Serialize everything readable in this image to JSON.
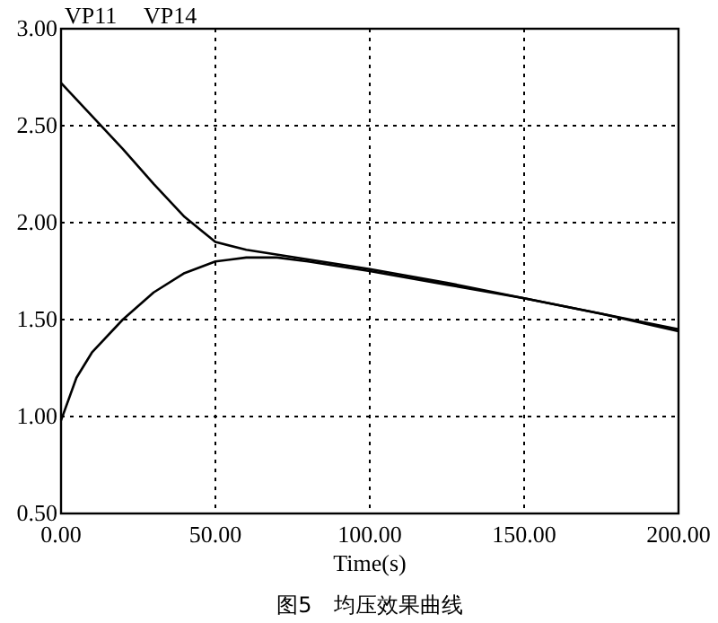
{
  "chart_data": {
    "type": "line",
    "title": "图5　均压效果曲线",
    "xlabel": "Time(s)",
    "xlim": [
      0,
      200
    ],
    "xticks": [
      {
        "value": 0,
        "label": "0.00"
      },
      {
        "value": 50,
        "label": "50.00"
      },
      {
        "value": 100,
        "label": "100.00"
      },
      {
        "value": 150,
        "label": "150.00"
      },
      {
        "value": 200,
        "label": "200.00"
      }
    ],
    "ylim": [
      0.5,
      3
    ],
    "yticks": [
      {
        "value": 0.5,
        "label": "0.50"
      },
      {
        "value": 1,
        "label": "1.00"
      },
      {
        "value": 1.5,
        "label": "1.50"
      },
      {
        "value": 2,
        "label": "2.00"
      },
      {
        "value": 2.5,
        "label": "2.50"
      },
      {
        "value": 3,
        "label": "3.00"
      }
    ],
    "grid": true,
    "marker": "none",
    "line_style": "solid",
    "annotations": [
      "VP11",
      "VP14"
    ],
    "series": [
      {
        "color": "#000000",
        "x": [
          0,
          10,
          20,
          30,
          40,
          50,
          60,
          80,
          100,
          125,
          150,
          175,
          200
        ],
        "values": [
          2.72,
          2.55,
          2.38,
          2.2,
          2.03,
          1.9,
          1.86,
          1.81,
          1.76,
          1.69,
          1.61,
          1.53,
          1.45
        ]
      },
      {
        "color": "#000000",
        "x": [
          0,
          5,
          10,
          20,
          30,
          40,
          50,
          60,
          70,
          80,
          100,
          125,
          150,
          175,
          200
        ],
        "values": [
          0.98,
          1.2,
          1.33,
          1.5,
          1.64,
          1.74,
          1.8,
          1.82,
          1.82,
          1.8,
          1.75,
          1.68,
          1.61,
          1.53,
          1.44
        ]
      }
    ]
  }
}
